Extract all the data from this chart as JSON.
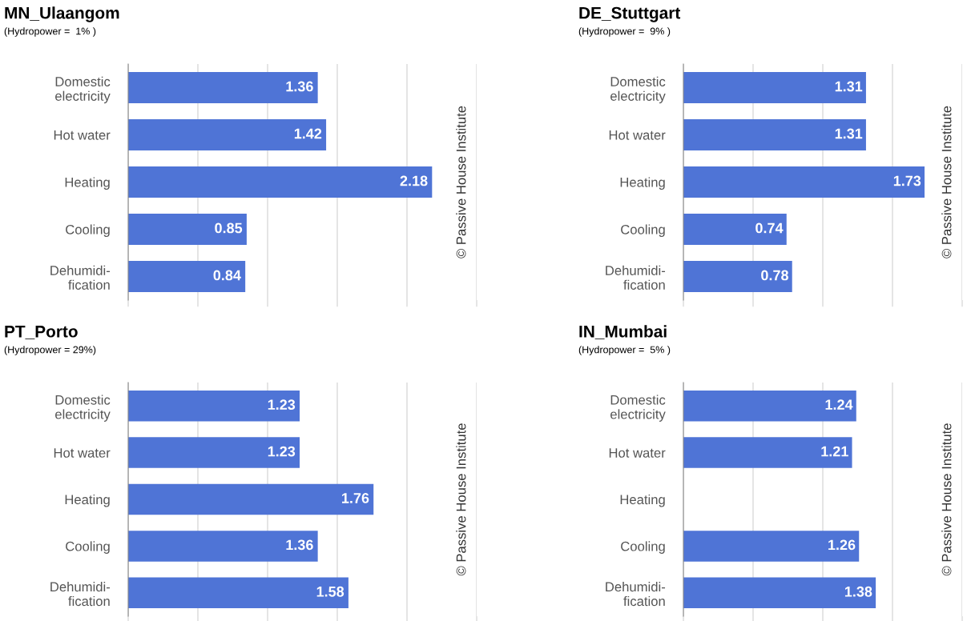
{
  "chart_data": [
    {
      "type": "bar",
      "orientation": "horizontal",
      "title": "MN_Ulaangom",
      "subtitle": "(Hydropower =  1% )",
      "categories": [
        "Domestic\nelectricity",
        "Hot water",
        "Heating",
        "Cooling",
        "Dehumidi-\nfication"
      ],
      "values": [
        1.36,
        1.42,
        2.18,
        0.85,
        0.84
      ],
      "color": "#4f74d6",
      "data_labels": true,
      "xlim": [
        0,
        2.5
      ],
      "xticks": [
        {
          "value": 0,
          "label": null
        },
        {
          "value": 0.5,
          "label": null
        },
        {
          "value": 1,
          "label": null
        },
        {
          "value": 1.5,
          "label": null
        },
        {
          "value": 2,
          "label": null
        },
        {
          "value": 2.5,
          "label": null
        }
      ],
      "grid": "x",
      "annotations": [
        "© Passive House Institute"
      ]
    },
    {
      "type": "bar",
      "orientation": "horizontal",
      "title": "DE_Stuttgart",
      "subtitle": "(Hydropower =  9% )",
      "categories": [
        "Domestic\nelectricity",
        "Hot water",
        "Heating",
        "Cooling",
        "Dehumidi-\nfication"
      ],
      "values": [
        1.31,
        1.31,
        1.73,
        0.74,
        0.78
      ],
      "color": "#4f74d6",
      "data_labels": true,
      "xlim": [
        0,
        2
      ],
      "xticks": [
        {
          "value": 0,
          "label": null
        },
        {
          "value": 0.5,
          "label": null
        },
        {
          "value": 1,
          "label": null
        },
        {
          "value": 1.5,
          "label": null
        },
        {
          "value": 2,
          "label": null
        }
      ],
      "grid": "x",
      "annotations": [
        "© Passive House Institute"
      ]
    },
    {
      "type": "bar",
      "orientation": "horizontal",
      "title": "PT_Porto",
      "subtitle": "(Hydropower = 29%)",
      "categories": [
        "Domestic\nelectricity",
        "Hot water",
        "Heating",
        "Cooling",
        "Dehumidi-\nfication"
      ],
      "values": [
        1.23,
        1.23,
        1.76,
        1.36,
        1.58
      ],
      "color": "#4f74d6",
      "data_labels": true,
      "xlim": [
        0,
        2.5
      ],
      "xticks": [
        {
          "value": 0,
          "label": null
        },
        {
          "value": 0.5,
          "label": null
        },
        {
          "value": 1,
          "label": null
        },
        {
          "value": 1.5,
          "label": null
        },
        {
          "value": 2,
          "label": null
        },
        {
          "value": 2.5,
          "label": null
        }
      ],
      "grid": "x",
      "annotations": [
        "© Passive House Institute"
      ]
    },
    {
      "type": "bar",
      "orientation": "horizontal",
      "title": "IN_Mumbai",
      "subtitle": "(Hydropower =  5% )",
      "categories": [
        "Domestic\nelectricity",
        "Hot water",
        "Heating",
        "Cooling",
        "Dehumidi-\nfication"
      ],
      "values": [
        1.24,
        1.21,
        null,
        1.26,
        1.38
      ],
      "color": "#4f74d6",
      "data_labels": true,
      "xlim": [
        0,
        2
      ],
      "xticks": [
        {
          "value": 0,
          "label": null
        },
        {
          "value": 0.5,
          "label": null
        },
        {
          "value": 1,
          "label": null
        },
        {
          "value": 1.5,
          "label": null
        },
        {
          "value": 2,
          "label": null
        }
      ],
      "grid": "x",
      "annotations": [
        "© Passive House Institute"
      ]
    }
  ]
}
